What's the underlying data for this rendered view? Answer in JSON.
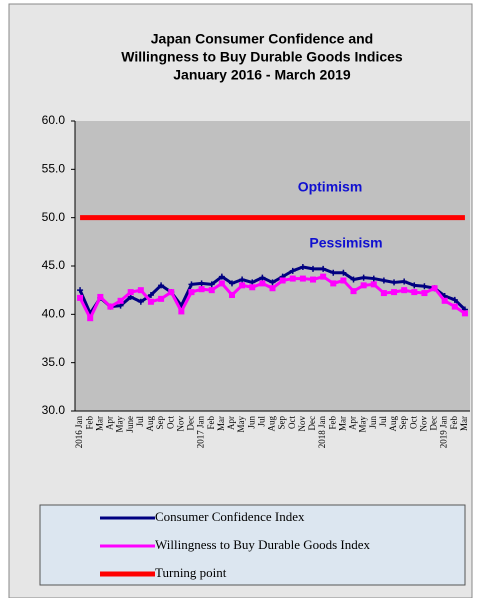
{
  "chart_data": {
    "type": "line",
    "title": [
      "Japan Consumer Confidence and",
      "Willingness to Buy Durable Goods Indices",
      "January 2016 -  March 2019"
    ],
    "annotations": [
      "Optimism",
      "Pessimism"
    ],
    "categories": [
      "2016 Jan",
      "Feb",
      "Mar",
      "Apr",
      "May",
      "June",
      "Jul",
      "Aug",
      "Sep",
      "Oct",
      "Nov",
      "Dec",
      "2017 Jan",
      "Feb",
      "Mar",
      "Apr",
      "May",
      "Jun",
      "Jul",
      "Aug",
      "Sep",
      "Oct",
      "Nov",
      "Dec",
      "2018 Jan",
      "Feb",
      "Mar",
      "Apr",
      "May",
      "Jun",
      "Jul",
      "Aug",
      "Sep",
      "Oct",
      "Nov",
      "Dec",
      "2019 Jan",
      "Feb",
      "Mar"
    ],
    "series": [
      {
        "name": "Consumer Confidence Index",
        "color": "#000080",
        "values": [
          42.5,
          40.1,
          41.7,
          40.8,
          40.9,
          41.8,
          41.3,
          42.0,
          43.0,
          42.3,
          40.9,
          43.1,
          43.2,
          43.1,
          43.9,
          43.2,
          43.6,
          43.3,
          43.8,
          43.3,
          43.9,
          44.5,
          44.9,
          44.7,
          44.7,
          44.3,
          44.3,
          43.6,
          43.8,
          43.7,
          43.5,
          43.3,
          43.4,
          43.0,
          42.9,
          42.7,
          41.9,
          41.5,
          40.5
        ]
      },
      {
        "name": "Willingness to Buy Durable Goods Index",
        "color": "#ff00ff",
        "values": [
          41.7,
          39.6,
          41.8,
          40.8,
          41.4,
          42.3,
          42.5,
          41.3,
          41.6,
          42.3,
          40.3,
          42.3,
          42.6,
          42.5,
          43.2,
          42.0,
          43.0,
          42.8,
          43.2,
          42.7,
          43.5,
          43.7,
          43.7,
          43.6,
          43.9,
          43.2,
          43.5,
          42.4,
          43.0,
          43.1,
          42.2,
          42.3,
          42.5,
          42.3,
          42.2,
          42.7,
          41.4,
          40.8,
          40.1
        ]
      },
      {
        "name": "Turning point",
        "color": "#ff0000",
        "values": [
          50,
          50,
          50,
          50,
          50,
          50,
          50,
          50,
          50,
          50,
          50,
          50,
          50,
          50,
          50,
          50,
          50,
          50,
          50,
          50,
          50,
          50,
          50,
          50,
          50,
          50,
          50,
          50,
          50,
          50,
          50,
          50,
          50,
          50,
          50,
          50,
          50,
          50,
          50
        ]
      }
    ],
    "ylim": [
      30,
      60
    ],
    "yticks": [
      {
        "value": 30,
        "label": "30.0"
      },
      {
        "value": 35,
        "label": "35.0"
      },
      {
        "value": 40,
        "label": "40.0"
      },
      {
        "value": 45,
        "label": "45.0"
      },
      {
        "value": 50,
        "label": "50.0"
      },
      {
        "value": 55,
        "label": "55.0"
      },
      {
        "value": 60,
        "label": "60.0"
      }
    ]
  }
}
